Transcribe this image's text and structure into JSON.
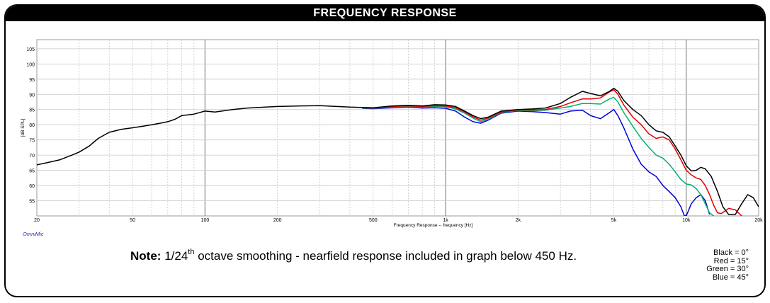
{
  "title": "FREQUENCY RESPONSE",
  "watermark": "OmniMic",
  "note": {
    "label": "Note:",
    "prefix": "1/24",
    "sup": "th",
    "suffix": " octave smoothing - nearfield response included in graph below 450 Hz."
  },
  "legend": [
    "Black = 0°",
    "Red = 15°",
    "Green = 30°",
    "Blue = 45°"
  ],
  "chart_data": {
    "type": "line",
    "xscale": "log",
    "xlim": [
      20,
      20000
    ],
    "ylim": [
      50,
      108
    ],
    "grid": true,
    "xlabel": "Frequency Response -- frequency [Hz]",
    "ylabel": "[dB SPL]",
    "xticks": [
      {
        "v": 20,
        "label": "20"
      },
      {
        "v": 50,
        "label": "50"
      },
      {
        "v": 100,
        "label": "100"
      },
      {
        "v": 200,
        "label": "200"
      },
      {
        "v": 500,
        "label": "500"
      },
      {
        "v": 1000,
        "label": "1k"
      },
      {
        "v": 2000,
        "label": "2k"
      },
      {
        "v": 5000,
        "label": "5k"
      },
      {
        "v": 10000,
        "label": "10k"
      },
      {
        "v": 20000,
        "label": "20k"
      }
    ],
    "yticks": [
      55,
      60,
      65,
      70,
      75,
      80,
      85,
      90,
      95,
      100,
      105
    ],
    "series": [
      {
        "color": "#000000",
        "points": [
          [
            20,
            66.8
          ],
          [
            22,
            67.5
          ],
          [
            25,
            68.5
          ],
          [
            28,
            70
          ],
          [
            30,
            71
          ],
          [
            33,
            73
          ],
          [
            36,
            75.5
          ],
          [
            40,
            77.5
          ],
          [
            45,
            78.5
          ],
          [
            50,
            79
          ],
          [
            55,
            79.5
          ],
          [
            60,
            80
          ],
          [
            65,
            80.5
          ],
          [
            70,
            81
          ],
          [
            75,
            81.8
          ],
          [
            80,
            83
          ],
          [
            90,
            83.5
          ],
          [
            100,
            84.5
          ],
          [
            110,
            84.2
          ],
          [
            130,
            85
          ],
          [
            150,
            85.5
          ],
          [
            200,
            86
          ],
          [
            250,
            86.2
          ],
          [
            300,
            86.3
          ],
          [
            400,
            85.8
          ],
          [
            500,
            85.6
          ],
          [
            600,
            86.2
          ],
          [
            700,
            86.4
          ],
          [
            800,
            86.2
          ],
          [
            900,
            86.6
          ],
          [
            1000,
            86.5
          ],
          [
            1100,
            86
          ],
          [
            1200,
            84.5
          ],
          [
            1300,
            83
          ],
          [
            1400,
            82
          ],
          [
            1500,
            82.5
          ],
          [
            1700,
            84.5
          ],
          [
            2000,
            85
          ],
          [
            2300,
            85.2
          ],
          [
            2600,
            85.5
          ],
          [
            3000,
            87
          ],
          [
            3300,
            89
          ],
          [
            3700,
            91
          ],
          [
            4000,
            90.3
          ],
          [
            4400,
            89.5
          ],
          [
            4800,
            91
          ],
          [
            5000,
            92
          ],
          [
            5200,
            91
          ],
          [
            5500,
            88
          ],
          [
            6000,
            85
          ],
          [
            6500,
            83
          ],
          [
            7000,
            80
          ],
          [
            7500,
            78
          ],
          [
            8000,
            77.5
          ],
          [
            8500,
            76
          ],
          [
            9000,
            73
          ],
          [
            9500,
            70
          ],
          [
            10000,
            66.5
          ],
          [
            10500,
            64.8
          ],
          [
            11000,
            65
          ],
          [
            11500,
            66
          ],
          [
            12000,
            65.5
          ],
          [
            12700,
            63
          ],
          [
            13500,
            58
          ],
          [
            14200,
            53
          ],
          [
            15000,
            50.5
          ],
          [
            16000,
            50.5
          ],
          [
            17000,
            54
          ],
          [
            18000,
            57
          ],
          [
            19000,
            56
          ],
          [
            20000,
            53
          ]
        ]
      },
      {
        "color": "#e00000",
        "points": [
          [
            450,
            85.6
          ],
          [
            500,
            85.5
          ],
          [
            600,
            86
          ],
          [
            700,
            86.2
          ],
          [
            800,
            86
          ],
          [
            900,
            86.3
          ],
          [
            1000,
            86.2
          ],
          [
            1100,
            85.6
          ],
          [
            1200,
            84.2
          ],
          [
            1300,
            82.6
          ],
          [
            1400,
            81.5
          ],
          [
            1500,
            82.2
          ],
          [
            1700,
            84.2
          ],
          [
            2000,
            84.9
          ],
          [
            2300,
            84.9
          ],
          [
            2600,
            85
          ],
          [
            3000,
            86
          ],
          [
            3300,
            87.2
          ],
          [
            3700,
            88.5
          ],
          [
            4000,
            88.5
          ],
          [
            4400,
            88.8
          ],
          [
            4800,
            90.8
          ],
          [
            5000,
            91.5
          ],
          [
            5200,
            90
          ],
          [
            5500,
            86.5
          ],
          [
            6000,
            82.5
          ],
          [
            6500,
            80
          ],
          [
            7000,
            77
          ],
          [
            7500,
            75.5
          ],
          [
            8000,
            76
          ],
          [
            8500,
            75
          ],
          [
            9000,
            72
          ],
          [
            9500,
            68.5
          ],
          [
            10000,
            65
          ],
          [
            10500,
            63.5
          ],
          [
            11000,
            62.5
          ],
          [
            11500,
            62
          ],
          [
            12000,
            60
          ],
          [
            12500,
            57
          ],
          [
            13000,
            53.5
          ],
          [
            13500,
            51
          ],
          [
            14000,
            50.8
          ],
          [
            15000,
            52.5
          ],
          [
            16000,
            52
          ],
          [
            17000,
            50
          ]
        ]
      },
      {
        "color": "#00b070",
        "points": [
          [
            450,
            85.5
          ],
          [
            500,
            85.4
          ],
          [
            600,
            85.8
          ],
          [
            700,
            86
          ],
          [
            800,
            85.8
          ],
          [
            900,
            86
          ],
          [
            1000,
            85.9
          ],
          [
            1100,
            85.2
          ],
          [
            1200,
            83.8
          ],
          [
            1300,
            82.2
          ],
          [
            1400,
            81
          ],
          [
            1500,
            81.8
          ],
          [
            1700,
            84
          ],
          [
            2000,
            84.7
          ],
          [
            2300,
            84.6
          ],
          [
            2600,
            84.8
          ],
          [
            3000,
            85.5
          ],
          [
            3300,
            86
          ],
          [
            3700,
            87
          ],
          [
            4000,
            87
          ],
          [
            4400,
            86.8
          ],
          [
            4800,
            88.5
          ],
          [
            5000,
            89
          ],
          [
            5200,
            87.5
          ],
          [
            5500,
            84
          ],
          [
            6000,
            79.5
          ],
          [
            6500,
            75.5
          ],
          [
            7000,
            72.5
          ],
          [
            7500,
            70
          ],
          [
            8000,
            69
          ],
          [
            8500,
            67
          ],
          [
            9000,
            64.5
          ],
          [
            9500,
            62
          ],
          [
            10000,
            60.5
          ],
          [
            10500,
            60.2
          ],
          [
            11000,
            59
          ],
          [
            11500,
            57
          ],
          [
            12000,
            54
          ],
          [
            12500,
            51
          ],
          [
            13000,
            50
          ]
        ]
      },
      {
        "color": "#0000e0",
        "points": [
          [
            450,
            85.4
          ],
          [
            500,
            85.3
          ],
          [
            600,
            85.6
          ],
          [
            700,
            85.8
          ],
          [
            800,
            85.5
          ],
          [
            900,
            85.6
          ],
          [
            1000,
            85.4
          ],
          [
            1100,
            84.5
          ],
          [
            1200,
            82.5
          ],
          [
            1300,
            81
          ],
          [
            1400,
            80.5
          ],
          [
            1500,
            81.5
          ],
          [
            1700,
            83.8
          ],
          [
            2000,
            84.5
          ],
          [
            2300,
            84.3
          ],
          [
            2600,
            84
          ],
          [
            3000,
            83.5
          ],
          [
            3300,
            84.5
          ],
          [
            3700,
            84.8
          ],
          [
            4000,
            83
          ],
          [
            4400,
            82
          ],
          [
            4800,
            84
          ],
          [
            5000,
            85
          ],
          [
            5200,
            83
          ],
          [
            5500,
            79
          ],
          [
            6000,
            72
          ],
          [
            6500,
            67
          ],
          [
            7000,
            64.5
          ],
          [
            7500,
            63
          ],
          [
            8000,
            60
          ],
          [
            8500,
            58
          ],
          [
            9000,
            56
          ],
          [
            9500,
            53
          ],
          [
            9800,
            50.2
          ],
          [
            10000,
            50
          ],
          [
            10500,
            54
          ],
          [
            11000,
            56
          ],
          [
            11500,
            57
          ],
          [
            12000,
            55
          ],
          [
            12500,
            50.5
          ]
        ]
      }
    ]
  }
}
